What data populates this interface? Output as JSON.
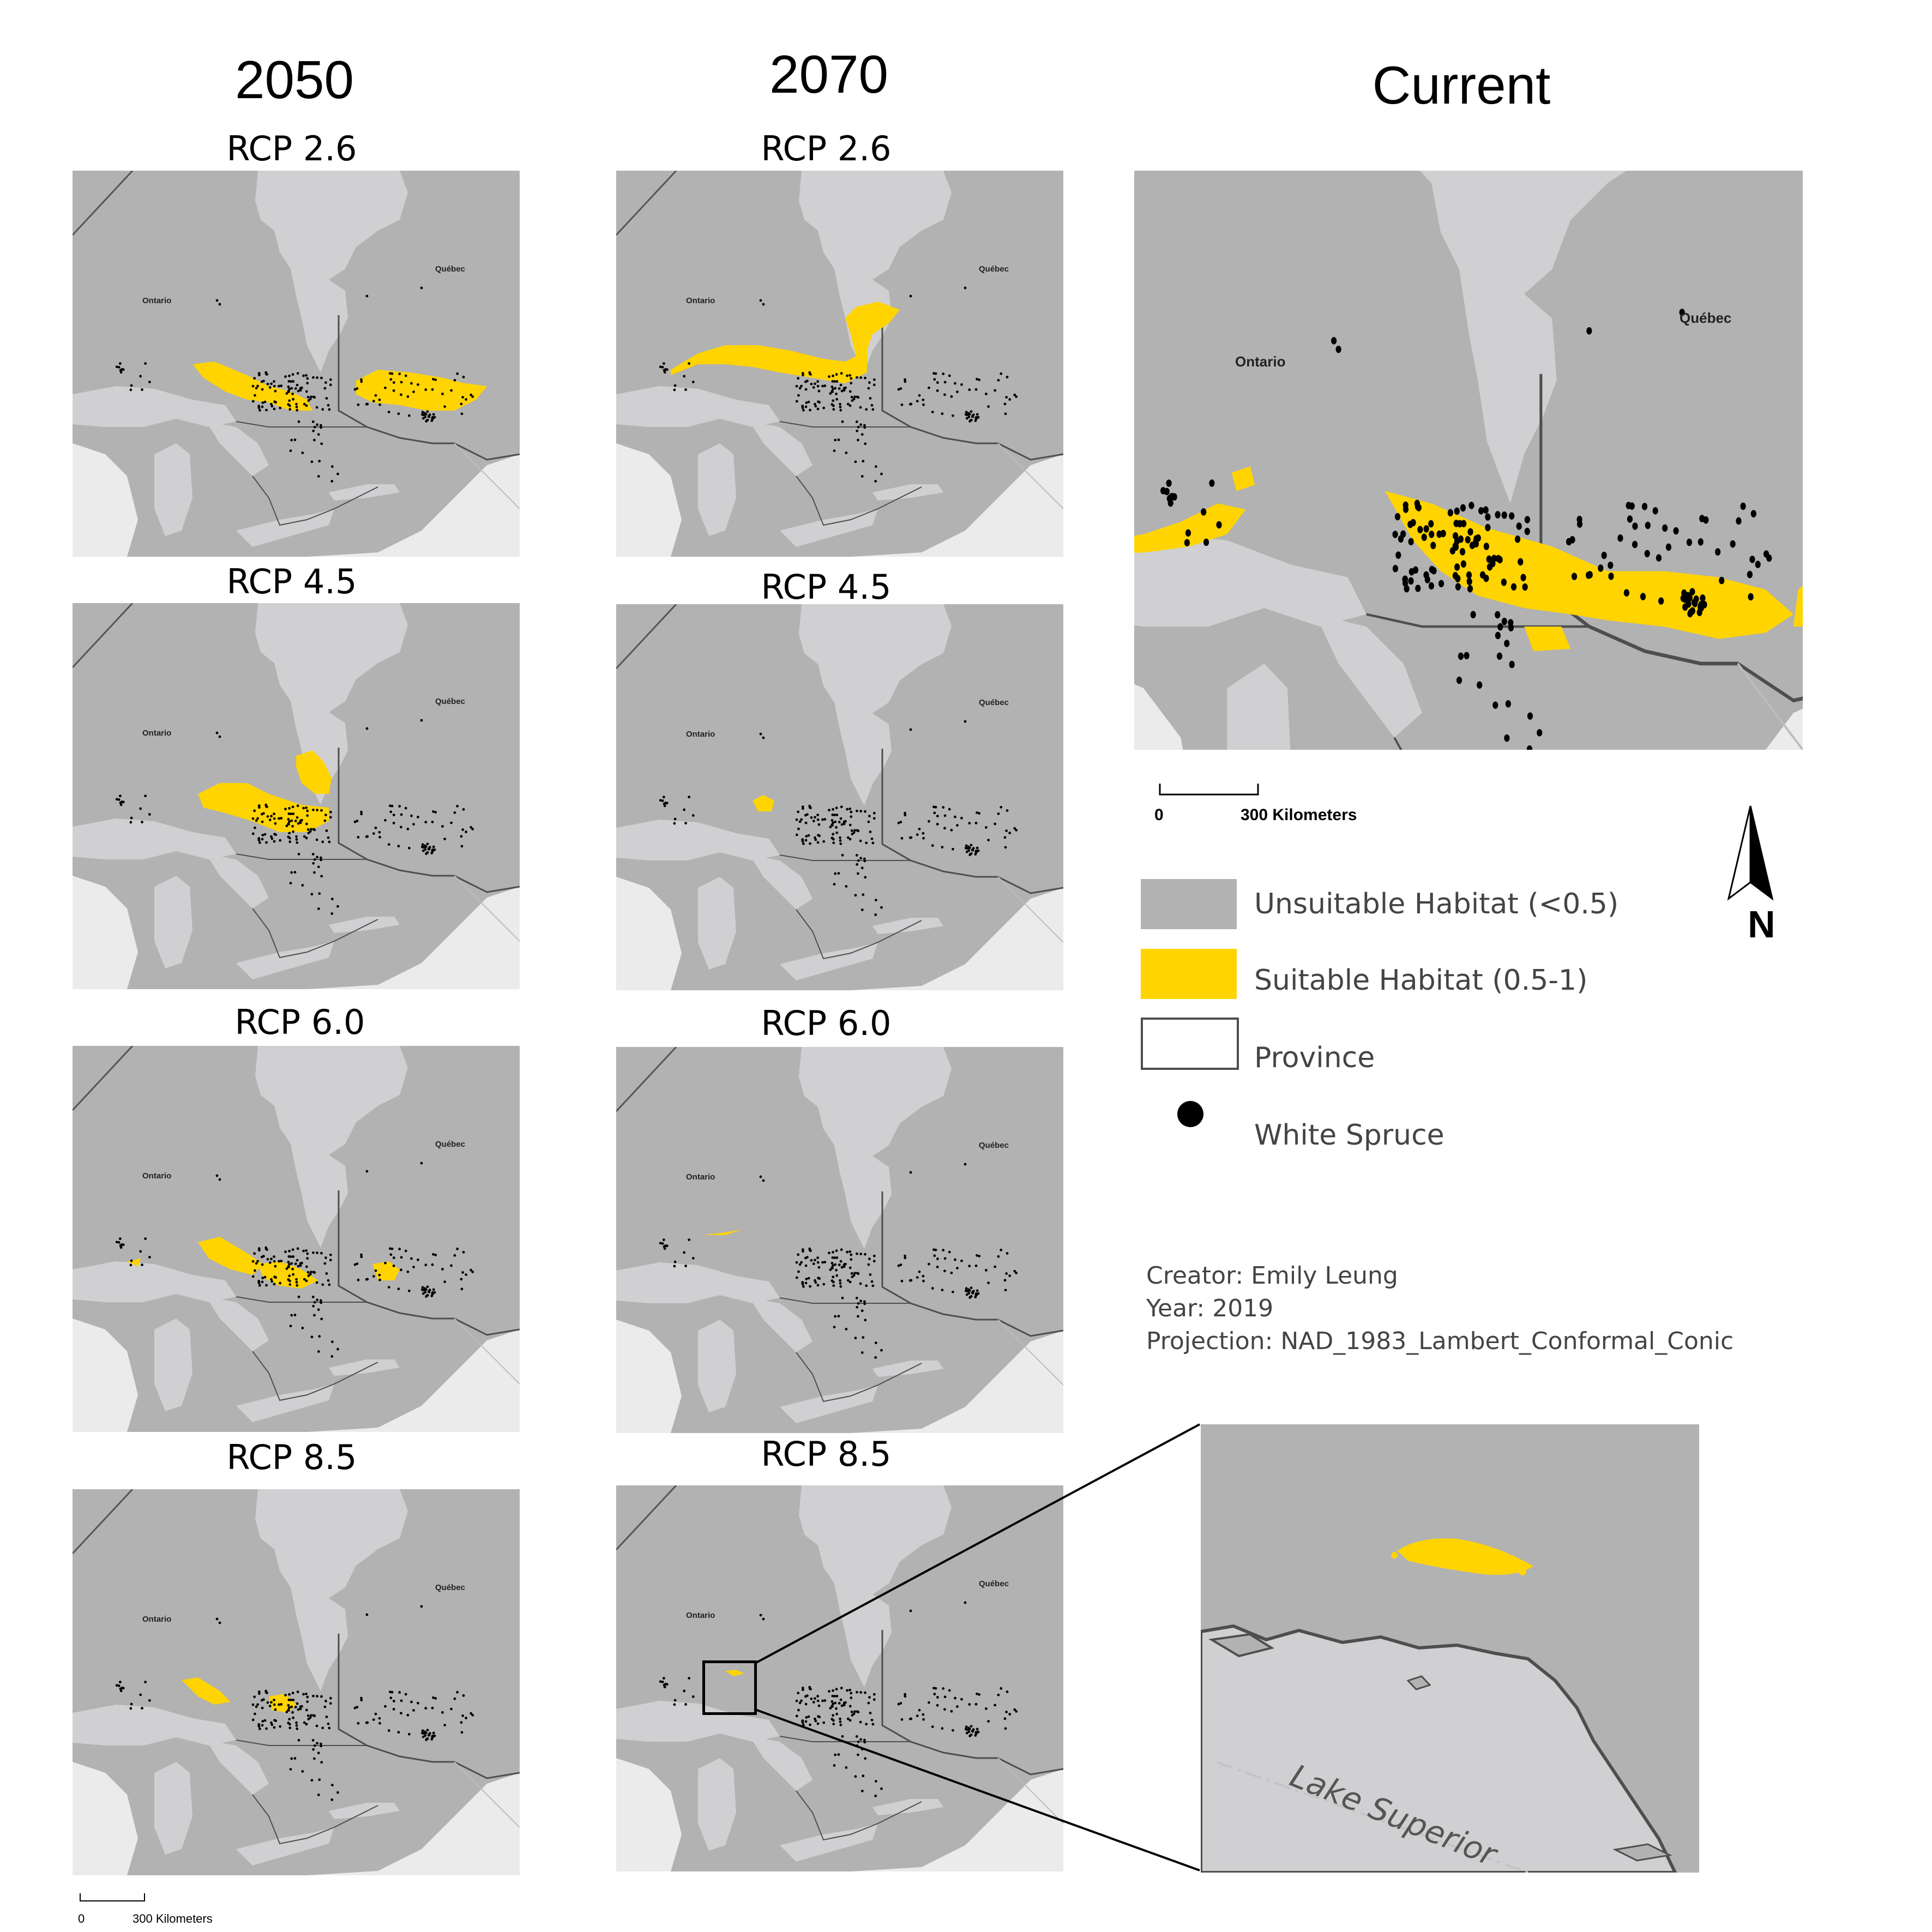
{
  "columns": {
    "y2050": "2050",
    "y2070": "2070",
    "current": "Current"
  },
  "scenarios": {
    "rcp26": "RCP 2.6",
    "rcp45": "RCP 4.5",
    "rcp60": "RCP 6.0",
    "rcp85": "RCP 8.5"
  },
  "map_labels": {
    "ontario": "Ontario",
    "quebec": "Québec",
    "lake_superior": "Lake Superior"
  },
  "legend": {
    "unsuitable": "Unsuitable Habitat (<0.5)",
    "suitable": "Suitable Habitat (0.5-1)",
    "province": "Province",
    "white_spruce": "White Spruce",
    "colors": {
      "unsuitable": "#b2b2b2",
      "suitable": "#ffd400",
      "province_outline": "#4e4e4e",
      "spruce": "#000000",
      "water": "#d0d0d2",
      "outside": "#ebebeb"
    }
  },
  "scale": {
    "zero": "0",
    "distance": "300 Kilometers"
  },
  "north_label": "N",
  "info": {
    "creator": "Creator: Emily Leung",
    "year": "Year: 2019",
    "projection": "Projection: NAD_1983_Lambert_Conformal_Conic"
  }
}
